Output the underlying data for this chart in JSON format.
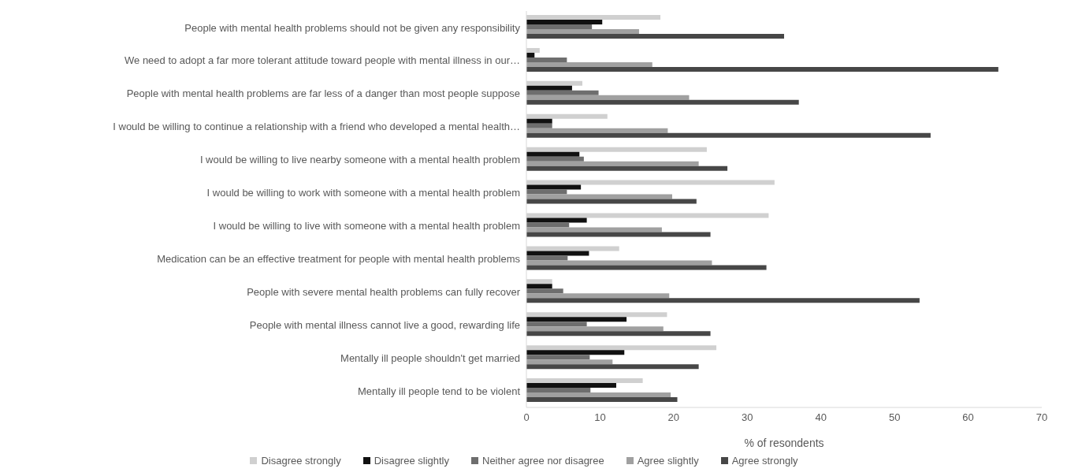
{
  "chart_data": {
    "type": "bar",
    "orientation": "horizontal",
    "xlabel": "% of resondents",
    "categories": [
      "People with mental health problems should not be given any responsibility",
      "We need to adopt a far more tolerant attitude toward people with mental illness in our…",
      "People with mental health problems are far less of a danger than most people suppose",
      "I would be willing to continue a relationship with a friend who developed a mental health…",
      "I would be willing to live nearby someone with a mental health problem",
      "I would be willing to work with someone with a mental health problem",
      "I would be willing to live with someone with a mental health problem",
      "Medication can be an effective treatment for people with mental health problems",
      "People with severe mental health problems can fully recover",
      "People with mental illness cannot live a good, rewarding life",
      "Mentally ill people shouldn't get married",
      "Mentally ill people tend to be violent"
    ],
    "series": [
      {
        "name": "Disagree strongly",
        "color": "#d0d0d0",
        "values": [
          18.2,
          1.8,
          7.6,
          11.0,
          24.5,
          33.7,
          32.9,
          12.6,
          3.5,
          19.1,
          25.8,
          15.8
        ]
      },
      {
        "name": "Disagree slightly",
        "color": "#111111",
        "values": [
          10.3,
          1.1,
          6.2,
          3.5,
          7.2,
          7.4,
          8.2,
          8.5,
          3.5,
          13.6,
          13.3,
          12.2
        ]
      },
      {
        "name": "Neither agree nor disagree",
        "color": "#6e6e6e",
        "values": [
          8.9,
          5.5,
          9.8,
          3.5,
          7.8,
          5.5,
          5.8,
          5.6,
          5.0,
          8.2,
          8.6,
          8.7
        ]
      },
      {
        "name": "Agree slightly",
        "color": "#a0a0a0",
        "values": [
          15.3,
          17.1,
          22.1,
          19.2,
          23.4,
          19.8,
          18.4,
          25.2,
          19.4,
          18.6,
          11.7,
          19.6
        ]
      },
      {
        "name": "Agree strongly",
        "color": "#474747",
        "values": [
          35.0,
          64.1,
          37.0,
          54.9,
          27.3,
          23.1,
          25.0,
          32.6,
          53.4,
          25.0,
          23.4,
          20.5
        ]
      }
    ],
    "xlim": [
      0,
      70
    ],
    "xticks": [
      0,
      10,
      20,
      30,
      40,
      50,
      60,
      70
    ],
    "grid": false,
    "legend": "bottom"
  }
}
